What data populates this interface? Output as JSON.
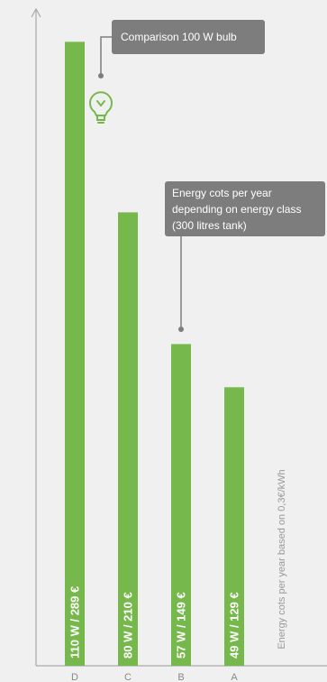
{
  "chart_data": {
    "type": "bar",
    "orientation": "vertical",
    "categories": [
      "D",
      "C",
      "B",
      "A"
    ],
    "values": [
      289,
      210,
      149,
      129
    ],
    "value_unit": "€",
    "bar_labels": [
      "110 W / 289 €",
      "80 W / 210 €",
      "57 W / 149 €",
      "49 W / 129 €"
    ],
    "ylabel": "Energy cots per year based on 0,3€/kWh",
    "xlabel": "",
    "ylim": [
      0,
      300
    ],
    "grid": false,
    "bar_color": "#77b84c",
    "annotations": [
      {
        "text": "Comparison 100 W bulb",
        "target_category": "D",
        "icon": "light-bulb-icon"
      },
      {
        "text": "Energy cots per year depending on energy class (300 litres tank)",
        "lines": [
          "Energy cots per year",
          "depending on energy class",
          "(300 litres tank)"
        ],
        "target_category": "B"
      }
    ]
  }
}
